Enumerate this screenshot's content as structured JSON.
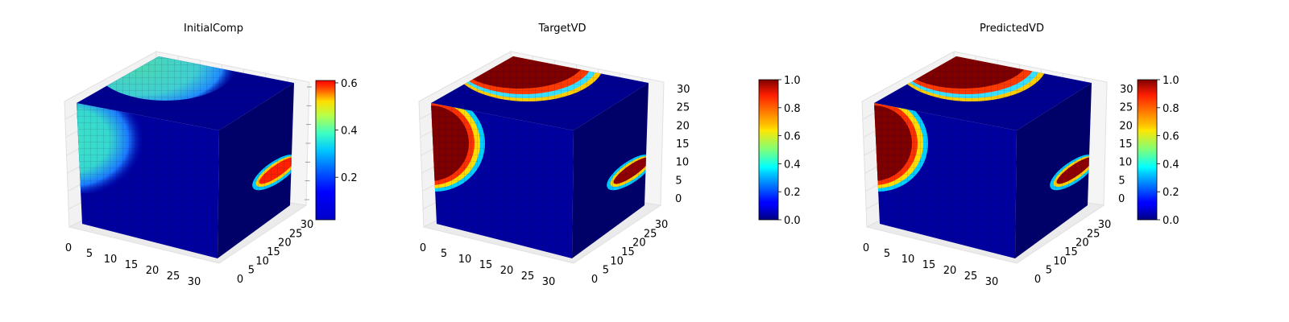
{
  "chart_data": [
    {
      "type": "heatmap",
      "subtype": "3d-voxel-cube",
      "title": "InitialComp",
      "colormap": "jet",
      "grid": true,
      "x_ticks": [
        "0",
        "5",
        "10",
        "15",
        "20",
        "25",
        "30"
      ],
      "y_ticks": [
        "0",
        "5",
        "10",
        "15",
        "20",
        "25",
        "30"
      ],
      "z_ticks": [],
      "colorbar": {
        "min": 0.02,
        "max": 0.61,
        "ticks": [
          "0.2",
          "0.4",
          "0.6"
        ],
        "tick_values": [
          0.2,
          0.4,
          0.6
        ]
      },
      "features": [
        {
          "face": "top",
          "value": 0.4
        },
        {
          "face": "front",
          "value": 0.4
        },
        {
          "face": "right",
          "value": 0.55
        }
      ],
      "background_value": 0.03
    },
    {
      "type": "heatmap",
      "subtype": "3d-voxel-cube",
      "title": "TargetVD",
      "colormap": "jet",
      "grid": true,
      "x_ticks": [
        "0",
        "5",
        "10",
        "15",
        "20",
        "25",
        "30"
      ],
      "y_ticks": [
        "0",
        "5",
        "10",
        "15",
        "20",
        "25",
        "30"
      ],
      "z_ticks": [
        "0",
        "5",
        "10",
        "15",
        "20",
        "25",
        "30"
      ],
      "colorbar": {
        "min": 0.0,
        "max": 1.0,
        "ticks": [
          "0.0",
          "0.2",
          "0.4",
          "0.6",
          "0.8",
          "1.0"
        ],
        "tick_values": [
          0,
          0.2,
          0.4,
          0.6,
          0.8,
          1.0
        ]
      },
      "features": [
        {
          "face": "top",
          "value": 1.0
        },
        {
          "face": "front",
          "value": 1.0
        },
        {
          "face": "right",
          "value": 1.0
        }
      ],
      "background_value": 0.0
    },
    {
      "type": "heatmap",
      "subtype": "3d-voxel-cube",
      "title": "PredictedVD",
      "colormap": "jet",
      "grid": true,
      "x_ticks": [
        "0",
        "5",
        "10",
        "15",
        "20",
        "25",
        "30"
      ],
      "y_ticks": [
        "0",
        "5",
        "10",
        "15",
        "20",
        "25",
        "30"
      ],
      "z_ticks": [
        "0",
        "5",
        "10",
        "15",
        "20",
        "25",
        "30"
      ],
      "colorbar": {
        "min": 0.0,
        "max": 1.0,
        "ticks": [
          "0.0",
          "0.2",
          "0.4",
          "0.6",
          "0.8",
          "1.0"
        ],
        "tick_values": [
          0,
          0.2,
          0.4,
          0.6,
          0.8,
          1.0
        ]
      },
      "features": [
        {
          "face": "top",
          "value": 1.0
        },
        {
          "face": "front",
          "value": 1.0
        },
        {
          "face": "right",
          "value": 1.0
        }
      ],
      "background_value": 0.0
    }
  ],
  "colors": {
    "cube_background": "#00007f",
    "pane_fill": "#f2f2f2",
    "pane_grid": "#dcdcdc"
  }
}
